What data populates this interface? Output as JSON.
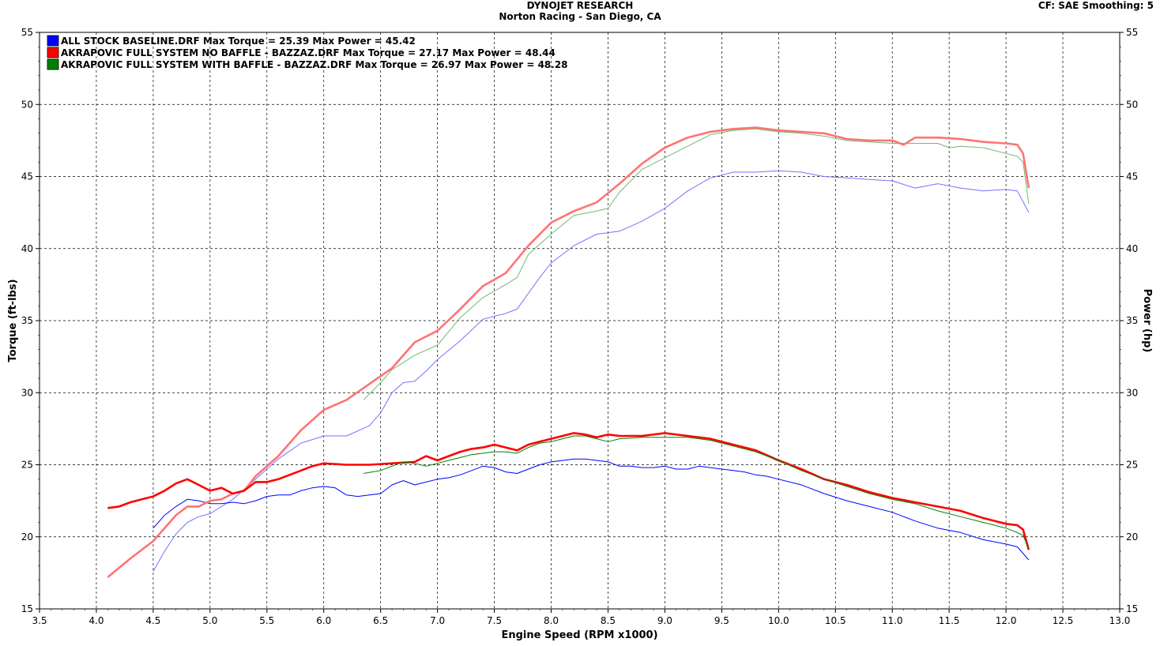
{
  "header": {
    "title": "DYNOJET RESEARCH",
    "subtitle": "Norton Racing - San Diego, CA",
    "cf": "CF: SAE  Smoothing: 5"
  },
  "chart_data": {
    "type": "line",
    "xlabel": "Engine Speed (RPM x1000)",
    "ylabel": "Torque (ft-lbs)",
    "y2label": "Power (hp)",
    "xlim": [
      3.5,
      13.0
    ],
    "ylim": [
      15,
      55
    ],
    "xticks": [
      "3.5",
      "4.0",
      "4.5",
      "5.0",
      "5.5",
      "6.0",
      "6.5",
      "7.0",
      "7.5",
      "8.0",
      "8.5",
      "9.0",
      "9.5",
      "10.0",
      "10.5",
      "11.0",
      "11.5",
      "12.0",
      "12.5",
      "13.0"
    ],
    "yticks": [
      "15",
      "20",
      "25",
      "30",
      "35",
      "40",
      "45",
      "50",
      "55"
    ],
    "grid": true,
    "legend_position": "top-left",
    "series": [
      {
        "name": "ALL STOCK BASELINE.DRF Max Torque = 25.39 Max Power = 45.42",
        "color": "#0000ff",
        "torque": {
          "x": [
            4.5,
            4.6,
            4.7,
            4.8,
            4.9,
            5.0,
            5.1,
            5.2,
            5.3,
            5.4,
            5.5,
            5.6,
            5.7,
            5.8,
            5.9,
            6.0,
            6.1,
            6.2,
            6.3,
            6.4,
            6.5,
            6.6,
            6.7,
            6.8,
            6.9,
            7.0,
            7.1,
            7.2,
            7.3,
            7.4,
            7.5,
            7.6,
            7.7,
            7.8,
            7.9,
            8.0,
            8.1,
            8.2,
            8.3,
            8.4,
            8.5,
            8.6,
            8.7,
            8.8,
            8.9,
            9.0,
            9.1,
            9.2,
            9.3,
            9.4,
            9.5,
            9.6,
            9.7,
            9.8,
            9.9,
            10.0,
            10.2,
            10.4,
            10.6,
            10.8,
            11.0,
            11.2,
            11.4,
            11.6,
            11.8,
            12.0,
            12.1,
            12.2
          ],
          "y": [
            20.6,
            21.5,
            22.1,
            22.6,
            22.5,
            22.3,
            22.3,
            22.4,
            22.3,
            22.5,
            22.8,
            22.9,
            22.9,
            23.2,
            23.4,
            23.5,
            23.4,
            22.9,
            22.8,
            22.9,
            23.0,
            23.6,
            23.9,
            23.6,
            23.8,
            24.0,
            24.1,
            24.3,
            24.6,
            24.9,
            24.8,
            24.5,
            24.4,
            24.7,
            25.0,
            25.2,
            25.3,
            25.4,
            25.4,
            25.3,
            25.2,
            24.9,
            24.9,
            24.8,
            24.8,
            24.9,
            24.7,
            24.7,
            24.9,
            24.8,
            24.7,
            24.6,
            24.5,
            24.3,
            24.2,
            24.0,
            23.6,
            23.0,
            22.5,
            22.1,
            21.7,
            21.1,
            20.6,
            20.3,
            19.8,
            19.5,
            19.3,
            18.4
          ]
        },
        "power": {
          "x": [
            4.5,
            4.6,
            4.7,
            4.8,
            4.9,
            5.0,
            5.2,
            5.4,
            5.6,
            5.8,
            6.0,
            6.2,
            6.4,
            6.5,
            6.6,
            6.7,
            6.8,
            6.9,
            7.0,
            7.2,
            7.4,
            7.5,
            7.6,
            7.7,
            7.8,
            7.9,
            8.0,
            8.2,
            8.4,
            8.6,
            8.8,
            9.0,
            9.2,
            9.4,
            9.6,
            9.8,
            10.0,
            10.2,
            10.4,
            10.6,
            10.8,
            11.0,
            11.2,
            11.4,
            11.6,
            11.8,
            12.0,
            12.1,
            12.2
          ],
          "y": [
            17.6,
            19.0,
            20.2,
            21.0,
            21.4,
            21.6,
            22.6,
            24.0,
            25.4,
            26.5,
            27.0,
            27.0,
            27.7,
            28.6,
            30.0,
            30.7,
            30.8,
            31.5,
            32.3,
            33.6,
            35.1,
            35.3,
            35.5,
            35.8,
            36.9,
            38.0,
            39.0,
            40.2,
            41.0,
            41.2,
            41.9,
            42.8,
            44.0,
            44.9,
            45.3,
            45.3,
            45.4,
            45.3,
            45.0,
            44.9,
            44.8,
            44.7,
            44.2,
            44.5,
            44.2,
            44.0,
            44.1,
            44.0,
            42.5
          ]
        }
      },
      {
        "name": "AKRAPOVIC FULL SYSTEM NO BAFFLE - BAZZAZ.DRF Max Torque = 27.17 Max Power = 48.44",
        "color": "#ff0000",
        "torque": {
          "x": [
            4.1,
            4.2,
            4.3,
            4.4,
            4.5,
            4.6,
            4.7,
            4.8,
            4.9,
            5.0,
            5.1,
            5.2,
            5.3,
            5.4,
            5.5,
            5.6,
            5.7,
            5.8,
            5.9,
            6.0,
            6.2,
            6.4,
            6.6,
            6.8,
            6.9,
            7.0,
            7.1,
            7.2,
            7.3,
            7.4,
            7.5,
            7.6,
            7.7,
            7.8,
            7.9,
            8.0,
            8.1,
            8.2,
            8.3,
            8.4,
            8.5,
            8.6,
            8.8,
            9.0,
            9.2,
            9.4,
            9.6,
            9.8,
            10.0,
            10.2,
            10.4,
            10.6,
            10.8,
            11.0,
            11.2,
            11.4,
            11.6,
            11.8,
            12.0,
            12.1,
            12.15,
            12.2
          ],
          "y": [
            22.0,
            22.1,
            22.4,
            22.6,
            22.8,
            23.2,
            23.7,
            24.0,
            23.6,
            23.2,
            23.4,
            23.0,
            23.2,
            23.8,
            23.8,
            24.0,
            24.3,
            24.6,
            24.9,
            25.1,
            25.0,
            25.0,
            25.1,
            25.2,
            25.6,
            25.3,
            25.6,
            25.9,
            26.1,
            26.2,
            26.4,
            26.2,
            26.0,
            26.4,
            26.6,
            26.8,
            27.0,
            27.2,
            27.1,
            26.9,
            27.1,
            27.0,
            27.0,
            27.2,
            27.0,
            26.8,
            26.4,
            26.0,
            25.3,
            24.7,
            24.0,
            23.6,
            23.1,
            22.7,
            22.4,
            22.1,
            21.8,
            21.3,
            20.9,
            20.8,
            20.5,
            19.1
          ]
        },
        "power": {
          "x": [
            4.1,
            4.3,
            4.5,
            4.7,
            4.8,
            4.9,
            5.0,
            5.1,
            5.2,
            5.3,
            5.4,
            5.6,
            5.8,
            6.0,
            6.2,
            6.4,
            6.6,
            6.8,
            7.0,
            7.2,
            7.4,
            7.6,
            7.8,
            8.0,
            8.2,
            8.4,
            8.6,
            8.8,
            9.0,
            9.2,
            9.4,
            9.6,
            9.8,
            10.0,
            10.2,
            10.4,
            10.6,
            10.8,
            11.0,
            11.1,
            11.2,
            11.4,
            11.6,
            11.8,
            12.0,
            12.1,
            12.15,
            12.2
          ],
          "y": [
            17.2,
            18.5,
            19.7,
            21.5,
            22.1,
            22.1,
            22.5,
            22.6,
            23.0,
            23.2,
            24.2,
            25.6,
            27.4,
            28.8,
            29.5,
            30.6,
            31.7,
            33.5,
            34.3,
            35.8,
            37.4,
            38.3,
            40.2,
            41.8,
            42.6,
            43.2,
            44.5,
            45.9,
            47.0,
            47.7,
            48.1,
            48.3,
            48.4,
            48.2,
            48.1,
            48.0,
            47.6,
            47.5,
            47.5,
            47.2,
            47.7,
            47.7,
            47.6,
            47.4,
            47.3,
            47.2,
            46.6,
            44.2
          ]
        }
      },
      {
        "name": "AKRAPOVIC FULL SYSTEM WITH BAFFLE - BAZZAZ.DRF Max Torque = 26.97 Max Power = 48.28",
        "color": "#008000",
        "torque": {
          "x": [
            6.35,
            6.5,
            6.6,
            6.7,
            6.8,
            6.9,
            7.0,
            7.1,
            7.2,
            7.3,
            7.4,
            7.5,
            7.6,
            7.7,
            7.8,
            7.9,
            8.0,
            8.1,
            8.2,
            8.3,
            8.4,
            8.5,
            8.6,
            8.8,
            9.0,
            9.2,
            9.4,
            9.6,
            9.8,
            10.0,
            10.2,
            10.4,
            10.6,
            10.8,
            11.0,
            11.2,
            11.4,
            11.6,
            11.8,
            12.0,
            12.1,
            12.15,
            12.2
          ],
          "y": [
            24.4,
            24.6,
            24.9,
            25.2,
            25.1,
            24.9,
            25.1,
            25.3,
            25.5,
            25.7,
            25.8,
            25.9,
            25.9,
            25.8,
            26.2,
            26.5,
            26.6,
            26.8,
            27.0,
            27.0,
            26.8,
            26.6,
            26.8,
            26.9,
            26.9,
            26.9,
            26.7,
            26.3,
            25.9,
            25.3,
            24.6,
            24.0,
            23.5,
            23.0,
            22.6,
            22.3,
            21.8,
            21.4,
            21.0,
            20.6,
            20.3,
            20.1,
            19.2
          ]
        },
        "power": {
          "x": [
            6.35,
            6.5,
            6.6,
            6.8,
            7.0,
            7.2,
            7.4,
            7.6,
            7.7,
            7.8,
            8.0,
            8.2,
            8.4,
            8.5,
            8.6,
            8.8,
            9.0,
            9.2,
            9.4,
            9.6,
            9.8,
            10.0,
            10.2,
            10.4,
            10.6,
            10.8,
            11.0,
            11.2,
            11.4,
            11.5,
            11.6,
            11.8,
            12.0,
            12.1,
            12.15,
            12.2
          ],
          "y": [
            29.5,
            30.7,
            31.6,
            32.6,
            33.3,
            35.2,
            36.6,
            37.5,
            38.0,
            39.6,
            41.0,
            42.3,
            42.6,
            42.8,
            43.9,
            45.5,
            46.3,
            47.1,
            47.9,
            48.2,
            48.3,
            48.1,
            48.0,
            47.8,
            47.5,
            47.4,
            47.3,
            47.3,
            47.3,
            47.0,
            47.1,
            47.0,
            46.6,
            46.4,
            46.0,
            43.1
          ]
        }
      }
    ]
  }
}
